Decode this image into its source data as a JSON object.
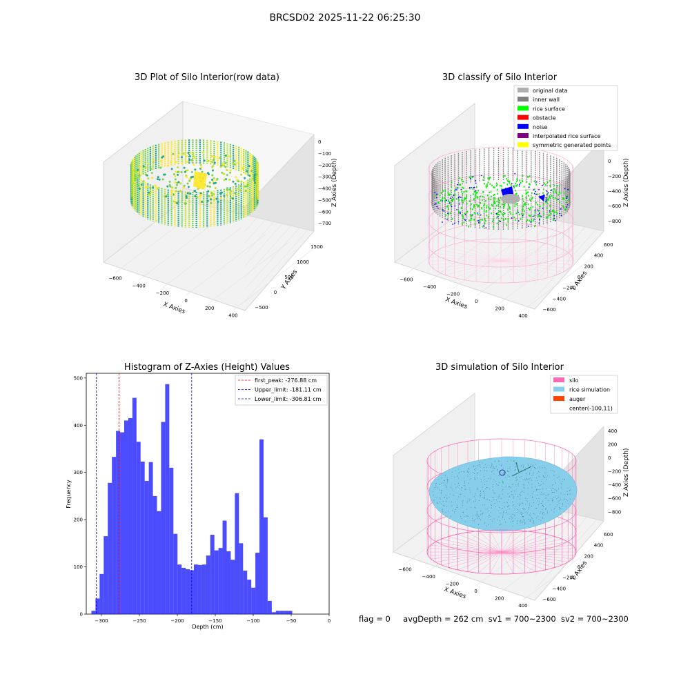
{
  "suptitle": "BRCSD02 2025-11-22 06:25:30",
  "footer": {
    "flag": "flag = 0",
    "avg_depth": "avgDepth = 262 cm",
    "sv1": "sv1 = 700~2300",
    "sv2": "sv2 = 700~2300"
  },
  "panels": {
    "raw": {
      "title": "3D Plot of Silo Interior(row data)",
      "xlabel": "X Axies",
      "ylabel": "Y Axies",
      "zlabel": "Z Axies (Depth)",
      "xticks": [
        "−600",
        "−400",
        "−200",
        "0",
        "200",
        "400"
      ],
      "yticks": [
        "−500",
        "0",
        "500",
        "1000",
        "1500"
      ],
      "zticks": [
        "0",
        "−100",
        "−200",
        "−300",
        "−400",
        "−500",
        "−600",
        "−700"
      ],
      "colormap": [
        "#22a884",
        "#7ad151",
        "#bddf26",
        "#fde725"
      ]
    },
    "classify": {
      "title": "3D classify of Silo Interior",
      "xlabel": "X Axies",
      "ylabel": "Y Axies",
      "zlabel": "Z Axies (Depth)",
      "xticks": [
        "−600",
        "−400",
        "−200",
        "0",
        "200",
        "400"
      ],
      "yticks": [
        "−600",
        "−400",
        "−200",
        "0",
        "200",
        "400",
        "600"
      ],
      "zticks": [
        "200",
        "0",
        "−200",
        "−400",
        "−600",
        "−800"
      ],
      "legend": [
        {
          "label": "original data",
          "color": "#b0b0b0"
        },
        {
          "label": "inner wall",
          "color": "#808080"
        },
        {
          "label": "rice surface",
          "color": "#00ff00"
        },
        {
          "label": "obstacle",
          "color": "#ff0000"
        },
        {
          "label": "noise",
          "color": "#0000ff"
        },
        {
          "label": "interpolated rice surface",
          "color": "#800080"
        },
        {
          "label": "symmetric generated points",
          "color": "#ffff00"
        }
      ]
    },
    "simulation": {
      "title": "3D simulation of Silo Interior",
      "xlabel": "X Axies",
      "ylabel": "Y Axies",
      "zlabel": "Z Axies (Depth)",
      "xticks": [
        "−600",
        "−400",
        "−200",
        "0",
        "200",
        "400"
      ],
      "yticks": [
        "−600",
        "−400",
        "−200",
        "0",
        "200",
        "400",
        "600"
      ],
      "zticks": [
        "400",
        "200",
        "0",
        "−200",
        "−400",
        "−600",
        "−800"
      ],
      "legend": [
        {
          "label": "silo",
          "color": "#ff69b4"
        },
        {
          "label": "rice simulation",
          "color": "#87ceeb"
        },
        {
          "label": "auger",
          "color": "#ff4500"
        },
        {
          "label": "center(-100,11)",
          "color": ""
        }
      ]
    }
  },
  "chart_data": {
    "type": "bar",
    "title": "Histogram of Z-Axies (Height) Values",
    "xlabel": "Depth (cm)",
    "ylabel": "Frequency",
    "xlim": [
      -320,
      0
    ],
    "ylim": [
      0,
      510
    ],
    "bar_color": "#0000ff",
    "bin_width": 5.4,
    "bin_starts": [
      -313.2,
      -307.8,
      -302.4,
      -297.0,
      -291.6,
      -286.2,
      -280.8,
      -275.4,
      -270.0,
      -264.6,
      -259.2,
      -253.8,
      -248.4,
      -243.0,
      -237.6,
      -232.2,
      -226.8,
      -221.4,
      -216.0,
      -210.6,
      -205.2,
      -199.8,
      -194.4,
      -189.0,
      -183.6,
      -178.2,
      -172.8,
      -167.4,
      -162.0,
      -156.6,
      -151.2,
      -145.8,
      -140.4,
      -135.0,
      -129.6,
      -124.2,
      -118.8,
      -113.4,
      -108.0,
      -102.6,
      -97.2,
      -91.8,
      -86.4,
      -81.0,
      -75.6,
      -70.2,
      -64.8,
      -59.4,
      -54.0,
      -48.6,
      -43.2,
      -37.8,
      -32.4,
      -27.0,
      -21.6,
      -16.2
    ],
    "counts": [
      7,
      33,
      85,
      165,
      278,
      333,
      388,
      385,
      410,
      415,
      458,
      365,
      323,
      282,
      322,
      250,
      218,
      407,
      487,
      310,
      170,
      105,
      98,
      95,
      93,
      105,
      104,
      105,
      124,
      168,
      135,
      140,
      198,
      133,
      115,
      256,
      150,
      92,
      73,
      56,
      130,
      370,
      205,
      28,
      4,
      7,
      7,
      7,
      7,
      0,
      0,
      0,
      0,
      0,
      0,
      0
    ],
    "yticks": [
      0,
      100,
      200,
      300,
      400,
      500
    ],
    "xticks": [
      -300,
      -250,
      -200,
      -150,
      -100,
      -50,
      0
    ],
    "lines": [
      {
        "label": "first_peak: -276.88 cm",
        "x": -276.88,
        "color": "#ff0000"
      },
      {
        "label": "Upper_limit: -181.11 cm",
        "x": -181.11,
        "color": "#0000ff"
      },
      {
        "label": "Lower_limit: -306.81 cm",
        "x": -306.81,
        "color": "#0000ff"
      }
    ]
  }
}
